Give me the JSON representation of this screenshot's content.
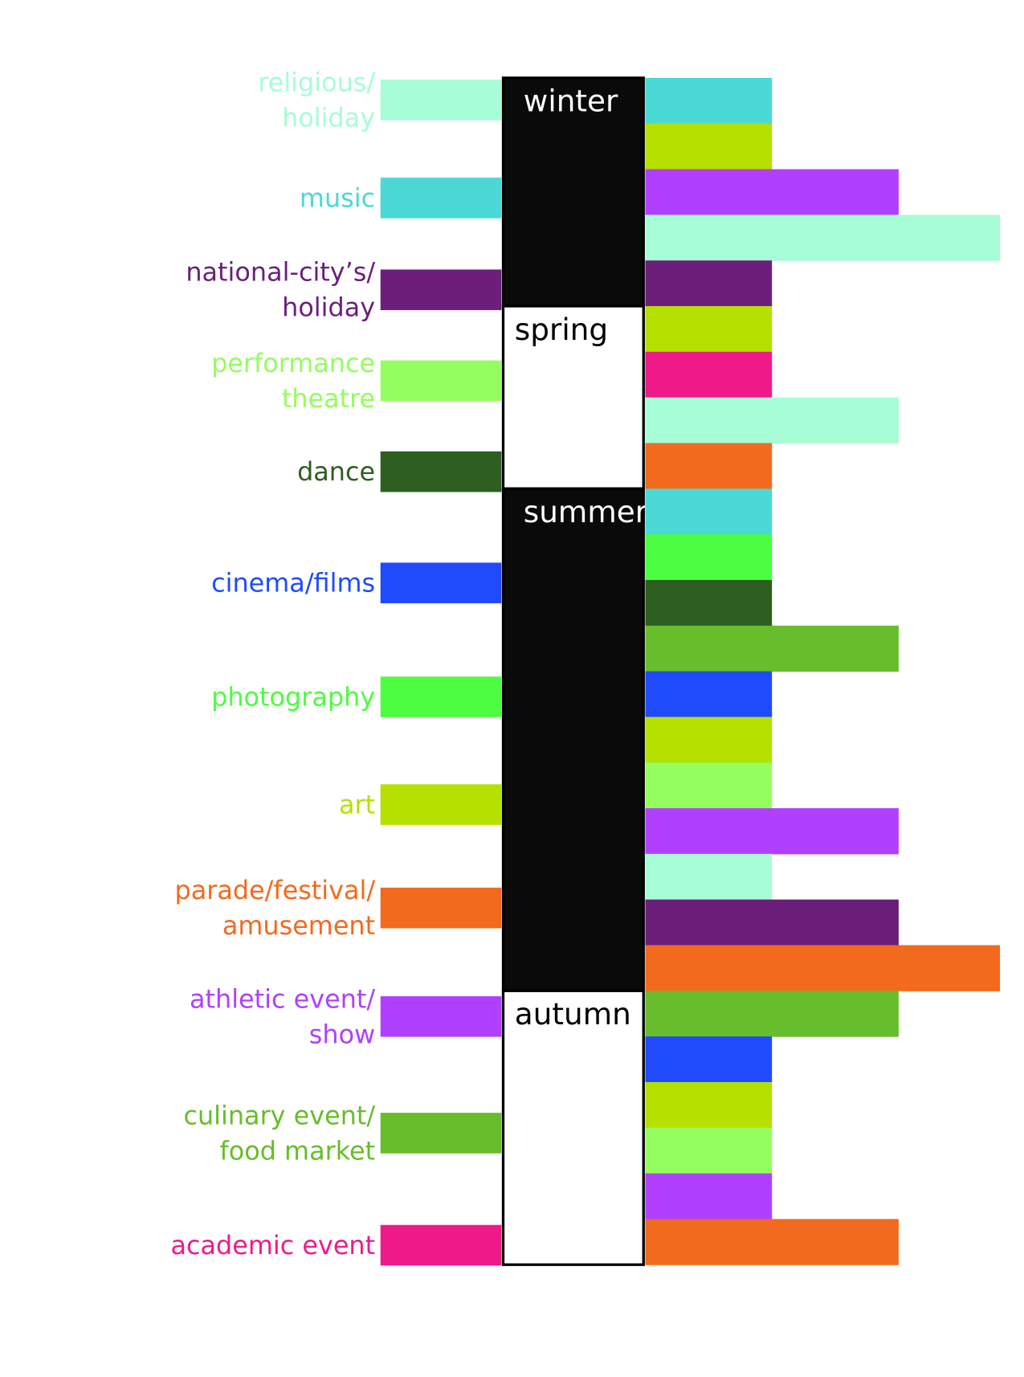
{
  "chart_data": {
    "type": "season-bars",
    "legend": [
      {
        "lines": [
          "religious/",
          "holiday"
        ],
        "color": "#a6fdd6"
      },
      {
        "lines": [
          "music"
        ],
        "color": "#4ad9d4"
      },
      {
        "lines": [
          "national-city’s/",
          "holiday"
        ],
        "color": "#6b1f7a"
      },
      {
        "lines": [
          "performance",
          "theatre"
        ],
        "color": "#94fd5f"
      },
      {
        "lines": [
          "dance"
        ],
        "color": "#2e5e20"
      },
      {
        "lines": [
          "cinema/films"
        ],
        "color": "#1f4bfd"
      },
      {
        "lines": [
          "photography"
        ],
        "color": "#4dfd40"
      },
      {
        "lines": [
          "art"
        ],
        "color": "#b6e000"
      },
      {
        "lines": [
          "parade/festival/",
          "amusement"
        ],
        "color": "#f26a1d"
      },
      {
        "lines": [
          "athletic event/",
          "show"
        ],
        "color": "#b040fd"
      },
      {
        "lines": [
          "culinary event/",
          "food market"
        ],
        "color": "#67bd2b"
      },
      {
        "lines": [
          "academic event"
        ],
        "color": "#ef1a8a"
      }
    ],
    "seasons": [
      {
        "name": "winter",
        "color": "#0a0a0a",
        "text_color": "#ffffff",
        "bars": [
          {
            "category": 1,
            "value": 1
          },
          {
            "category": 7,
            "value": 1
          },
          {
            "category": 9,
            "value": 2
          },
          {
            "category": 0,
            "value": 2.8
          },
          {
            "category": 2,
            "value": 1
          }
        ]
      },
      {
        "name": "spring",
        "color": "#ffffff",
        "text_color": "#000000",
        "bars": [
          {
            "category": 7,
            "value": 1
          },
          {
            "category": 11,
            "value": 1
          },
          {
            "category": 0,
            "value": 2
          },
          {
            "category": 8,
            "value": 1
          }
        ]
      },
      {
        "name": "summer",
        "color": "#0a0a0a",
        "text_color": "#ffffff",
        "bars": [
          {
            "category": 1,
            "value": 1
          },
          {
            "category": 6,
            "value": 1
          },
          {
            "category": 4,
            "value": 1
          },
          {
            "category": 10,
            "value": 2
          },
          {
            "category": 5,
            "value": 1
          },
          {
            "category": 7,
            "value": 1
          },
          {
            "category": 3,
            "value": 1
          },
          {
            "category": 9,
            "value": 2
          },
          {
            "category": 0,
            "value": 1
          },
          {
            "category": 2,
            "value": 2
          },
          {
            "category": 8,
            "value": 2.8
          }
        ]
      },
      {
        "name": "autumn",
        "color": "#ffffff",
        "text_color": "#000000",
        "bars": [
          {
            "category": 10,
            "value": 2
          },
          {
            "category": 5,
            "value": 1
          },
          {
            "category": 7,
            "value": 1
          },
          {
            "category": 3,
            "value": 1
          },
          {
            "category": 9,
            "value": 1
          },
          {
            "category": 8,
            "value": 2
          }
        ]
      }
    ]
  }
}
